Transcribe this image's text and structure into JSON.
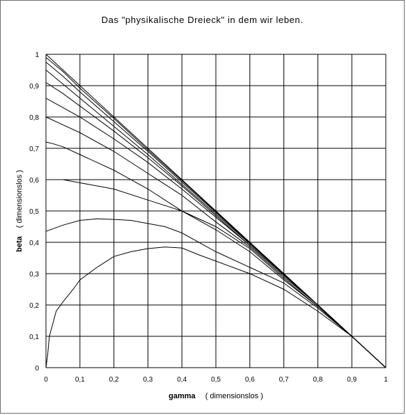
{
  "chart_data": {
    "type": "line",
    "title": "Das \"physikalische Dreieck\" in dem wir leben.",
    "xlabel_name": "gamma",
    "xlabel_unit": "( dimensionslos )",
    "ylabel_name": "beta",
    "ylabel_unit": "( dimensionslos )",
    "xlim": [
      0,
      1
    ],
    "ylim": [
      0,
      1
    ],
    "x_ticks": [
      "0",
      "0,1",
      "0,2",
      "0,3",
      "0,4",
      "0,5",
      "0,6",
      "0,7",
      "0,8",
      "0,9",
      "1"
    ],
    "y_ticks": [
      "0",
      "0,1",
      "0,2",
      "0,3",
      "0,4",
      "0,5",
      "0,6",
      "0,7",
      "0,8",
      "0,9",
      "1"
    ],
    "grid": true,
    "legend": "none",
    "line_color": "#000000",
    "series": [
      {
        "x": [
          0,
          0.005,
          0.01,
          0.02,
          0.03,
          0.05,
          0.08,
          0.1,
          0.15,
          0.2,
          0.25,
          0.3,
          0.35,
          0.4,
          0.45,
          0.5,
          0.6,
          0.7,
          0.8,
          0.9,
          1.0
        ],
        "values": [
          0,
          0.04,
          0.1,
          0.14,
          0.18,
          0.21,
          0.25,
          0.28,
          0.32,
          0.355,
          0.37,
          0.38,
          0.385,
          0.382,
          0.36,
          0.34,
          0.3,
          0.25,
          0.18,
          0.1,
          0
        ]
      },
      {
        "x": [
          0,
          0.05,
          0.1,
          0.15,
          0.2,
          0.25,
          0.3,
          0.35,
          0.4,
          0.45,
          0.5,
          0.6,
          0.7,
          0.8,
          0.9,
          1.0
        ],
        "values": [
          0.435,
          0.455,
          0.47,
          0.475,
          0.473,
          0.47,
          0.46,
          0.45,
          0.43,
          0.4,
          0.37,
          0.32,
          0.27,
          0.19,
          0.1,
          0
        ]
      },
      {
        "x": [
          0,
          0.05,
          0.1,
          0.15,
          0.2,
          0.3,
          0.4,
          0.5,
          0.6,
          0.7,
          0.8,
          0.9,
          1.0
        ],
        "values": [
          0.6,
          0.6,
          0.59,
          0.58,
          0.57,
          0.535,
          0.5,
          0.44,
          0.37,
          0.28,
          0.195,
          0.1,
          0
        ]
      },
      {
        "x": [
          0,
          0.02,
          0.05,
          0.1,
          0.2,
          0.3,
          0.4,
          0.5,
          0.6,
          0.7,
          0.8,
          0.9,
          1.0
        ],
        "values": [
          0.72,
          0.715,
          0.705,
          0.68,
          0.63,
          0.57,
          0.5,
          0.45,
          0.38,
          0.285,
          0.195,
          0.1,
          0
        ]
      },
      {
        "x": [
          0,
          0.05,
          0.1,
          0.2,
          0.3,
          0.4,
          0.5,
          0.6,
          0.7,
          0.8,
          0.9,
          1.0
        ],
        "values": [
          0.8,
          0.775,
          0.75,
          0.69,
          0.62,
          0.55,
          0.465,
          0.385,
          0.29,
          0.2,
          0.1,
          0
        ]
      },
      {
        "x": [
          0,
          0.05,
          0.1,
          0.2,
          0.3,
          0.4,
          0.5,
          0.6,
          0.7,
          0.8,
          0.9,
          1.0
        ],
        "values": [
          0.86,
          0.83,
          0.8,
          0.73,
          0.655,
          0.57,
          0.48,
          0.39,
          0.295,
          0.2,
          0.1,
          0
        ]
      },
      {
        "x": [
          0,
          0.05,
          0.1,
          0.2,
          0.3,
          0.4,
          0.5,
          0.6,
          0.7,
          0.8,
          0.9,
          1.0
        ],
        "values": [
          0.91,
          0.875,
          0.835,
          0.755,
          0.67,
          0.58,
          0.485,
          0.39,
          0.295,
          0.2,
          0.1,
          0
        ]
      },
      {
        "x": [
          0,
          0.05,
          0.1,
          0.2,
          0.3,
          0.4,
          0.5,
          0.6,
          0.7,
          0.8,
          0.9,
          1.0
        ],
        "values": [
          0.95,
          0.905,
          0.86,
          0.77,
          0.68,
          0.585,
          0.49,
          0.395,
          0.298,
          0.2,
          0.1,
          0
        ]
      },
      {
        "x": [
          0,
          0.05,
          0.1,
          0.2,
          0.3,
          0.4,
          0.5,
          0.6,
          0.7,
          0.8,
          0.9,
          1.0
        ],
        "values": [
          0.975,
          0.93,
          0.88,
          0.785,
          0.69,
          0.592,
          0.495,
          0.397,
          0.299,
          0.2,
          0.1,
          0
        ]
      },
      {
        "x": [
          0,
          0.05,
          0.1,
          0.2,
          0.3,
          0.4,
          0.5,
          0.6,
          0.7,
          0.8,
          0.9,
          1.0
        ],
        "values": [
          0.99,
          0.945,
          0.892,
          0.795,
          0.695,
          0.597,
          0.498,
          0.399,
          0.3,
          0.2,
          0.1,
          0
        ]
      },
      {
        "x": [
          0,
          0.05,
          0.1,
          0.2,
          0.3,
          0.4,
          0.5,
          0.6,
          0.7,
          0.8,
          0.9,
          1.0
        ],
        "values": [
          1.0,
          0.95,
          0.9,
          0.8,
          0.7,
          0.6,
          0.5,
          0.4,
          0.3,
          0.2,
          0.1,
          0
        ]
      }
    ]
  }
}
